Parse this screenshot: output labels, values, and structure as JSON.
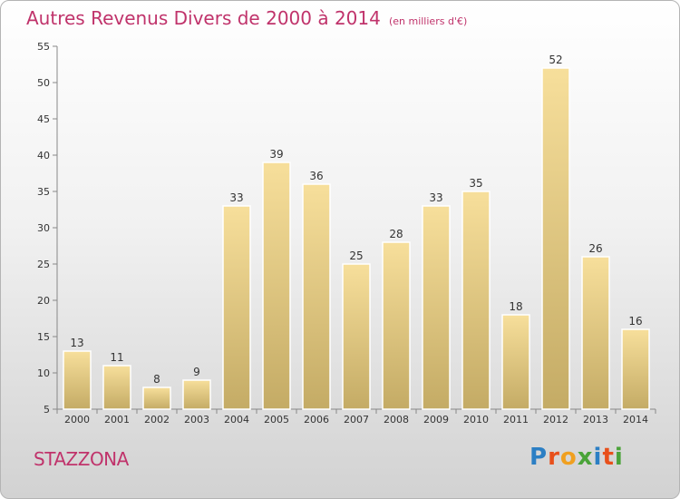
{
  "title": "Autres Revenus Divers de 2000 à 2014",
  "subtitle": "(en milliers d'€)",
  "commune": "STAZZONA",
  "logo": {
    "letters": [
      {
        "ch": "P",
        "color": "#2c7fc4"
      },
      {
        "ch": "r",
        "color": "#e8501b"
      },
      {
        "ch": "o",
        "color": "#f0a020"
      },
      {
        "ch": "x",
        "color": "#4aa339"
      },
      {
        "ch": "i",
        "color": "#2c7fc4"
      },
      {
        "ch": "t",
        "color": "#e8501b"
      },
      {
        "ch": "i",
        "color": "#4aa339"
      }
    ]
  },
  "colors": {
    "title": "#c0336b",
    "bar_top": "#f7df9b",
    "bar_bottom": "#c4ab65",
    "bar_edge": "#ffffff"
  },
  "chart_data": {
    "type": "bar",
    "title": "Autres Revenus Divers de 2000 à 2014",
    "subtitle": "(en milliers d'€)",
    "categories": [
      "2000",
      "2001",
      "2002",
      "2003",
      "2004",
      "2005",
      "2006",
      "2007",
      "2008",
      "2009",
      "2010",
      "2011",
      "2012",
      "2013",
      "2014"
    ],
    "values": [
      13,
      11,
      8,
      9,
      33,
      39,
      36,
      25,
      28,
      33,
      35,
      18,
      52,
      26,
      16
    ],
    "ylim": [
      5,
      55
    ],
    "yticks": [
      5,
      10,
      15,
      20,
      25,
      30,
      35,
      40,
      45,
      50,
      55
    ],
    "grid": false,
    "data_labels": true
  }
}
